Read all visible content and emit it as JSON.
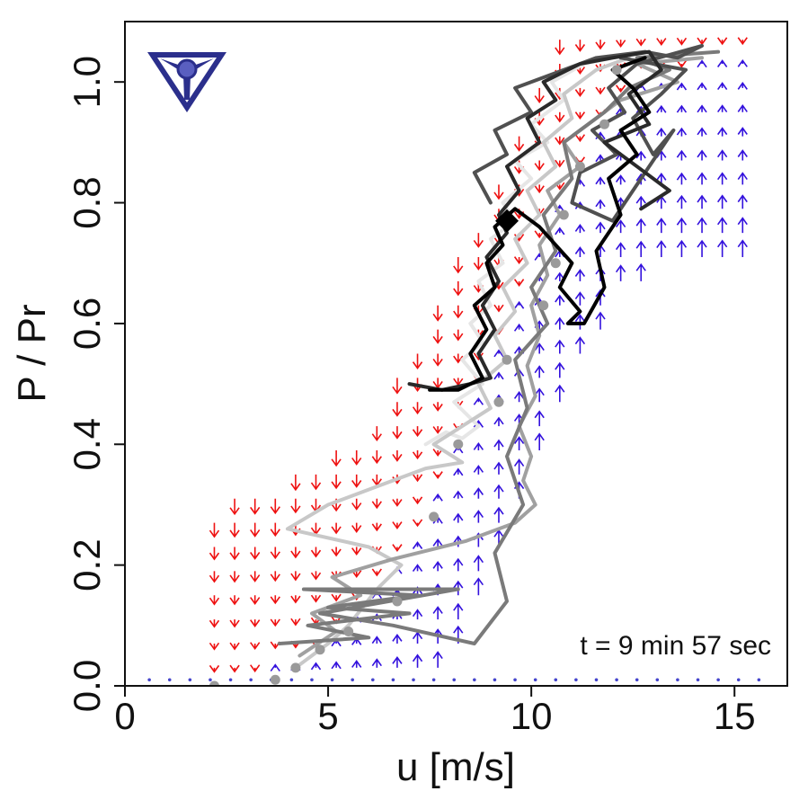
{
  "chart_data": {
    "type": "line",
    "title": "",
    "xlabel": "u [m/s]",
    "ylabel": "P / Pr",
    "xlim": [
      0,
      16.3
    ],
    "ylim": [
      0,
      1.1
    ],
    "x_ticks": [
      0,
      5,
      10,
      15
    ],
    "x_tick_labels": [
      "0",
      "5",
      "10",
      "15"
    ],
    "y_ticks": [
      0,
      0.2,
      0.4,
      0.6,
      0.8,
      1.0
    ],
    "y_tick_labels": [
      "0.0",
      "0.2",
      "0.4",
      "0.6",
      "0.8",
      "1.0"
    ],
    "annotation": "t = 9 min 57 sec",
    "grid": false,
    "logo": "tri-blade-turbine-logo",
    "colors": {
      "arrow_down": "#ee1111",
      "arrow_up": "#3311dd",
      "dot_zero": "#4444cc",
      "logo": "#2b2f8c"
    },
    "power_curve": {
      "u": [
        2.0,
        3.0,
        4.0,
        5.0,
        6.0,
        7.0,
        8.0,
        8.8,
        9.6,
        10.4,
        11.2,
        12.0,
        12.5,
        13.0,
        14.0,
        15.0,
        16.0
      ],
      "p": [
        0.0,
        0.01,
        0.04,
        0.08,
        0.14,
        0.24,
        0.38,
        0.5,
        0.62,
        0.75,
        0.87,
        0.96,
        1.0,
        1.02,
        1.03,
        1.04,
        1.04
      ]
    },
    "arrow_field": {
      "u_min": 2.2,
      "u_max": 15.2,
      "u_step": 0.5,
      "p_min": 0.03,
      "p_max": 1.08,
      "p_step": 0.04,
      "band_below": 4.5,
      "band_above": 4.0
    },
    "series": [
      {
        "color": "#e6e6e6",
        "width": 4,
        "points": [
          [
            7.4,
            0.4
          ],
          [
            7.9,
            0.42
          ],
          [
            8.3,
            0.41
          ],
          [
            8.7,
            0.43
          ],
          [
            8.1,
            0.47
          ],
          [
            8.8,
            0.5
          ],
          [
            8.3,
            0.54
          ],
          [
            8.8,
            0.57
          ],
          [
            8.5,
            0.6
          ],
          [
            9.0,
            0.63
          ],
          [
            8.7,
            0.67
          ],
          [
            9.3,
            0.7
          ],
          [
            9.0,
            0.74
          ],
          [
            9.6,
            0.77
          ],
          [
            9.3,
            0.8
          ],
          [
            10.0,
            0.84
          ],
          [
            9.6,
            0.87
          ],
          [
            10.4,
            0.9
          ],
          [
            10.0,
            0.93
          ],
          [
            10.8,
            0.97
          ],
          [
            10.5,
            1.0
          ],
          [
            11.3,
            1.03
          ],
          [
            12.0,
            1.04
          ]
        ]
      },
      {
        "color": "#c8c8c8",
        "width": 4,
        "points": [
          [
            4.2,
            0.03
          ],
          [
            5.0,
            0.07
          ],
          [
            5.5,
            0.1
          ],
          [
            6.2,
            0.16
          ],
          [
            6.8,
            0.2
          ],
          [
            6.0,
            0.23
          ],
          [
            4.0,
            0.26
          ],
          [
            5.0,
            0.3
          ],
          [
            6.2,
            0.33
          ],
          [
            7.4,
            0.36
          ],
          [
            8.3,
            0.37
          ],
          [
            7.6,
            0.4
          ],
          [
            8.3,
            0.43
          ],
          [
            9.0,
            0.46
          ],
          [
            8.7,
            0.5
          ],
          [
            9.4,
            0.54
          ],
          [
            9.1,
            0.58
          ],
          [
            9.6,
            0.62
          ],
          [
            9.3,
            0.66
          ],
          [
            9.9,
            0.7
          ],
          [
            9.6,
            0.74
          ],
          [
            10.2,
            0.78
          ],
          [
            9.9,
            0.82
          ],
          [
            10.6,
            0.86
          ],
          [
            10.3,
            0.9
          ],
          [
            11.0,
            0.94
          ],
          [
            10.8,
            0.98
          ],
          [
            11.6,
            1.02
          ],
          [
            12.4,
            1.04
          ]
        ]
      },
      {
        "color": "#a0a0a0",
        "width": 4,
        "points": [
          [
            4.3,
            0.05
          ],
          [
            5.2,
            0.09
          ],
          [
            4.6,
            0.12
          ],
          [
            5.8,
            0.15
          ],
          [
            5.1,
            0.18
          ],
          [
            6.6,
            0.21
          ],
          [
            8.4,
            0.24
          ],
          [
            9.6,
            0.27
          ],
          [
            10.1,
            0.3
          ],
          [
            9.8,
            0.34
          ],
          [
            10.0,
            0.38
          ],
          [
            9.7,
            0.43
          ],
          [
            10.1,
            0.48
          ],
          [
            9.9,
            0.53
          ],
          [
            10.2,
            0.58
          ],
          [
            10.0,
            0.63
          ],
          [
            10.4,
            0.68
          ],
          [
            10.2,
            0.73
          ],
          [
            10.7,
            0.78
          ],
          [
            10.4,
            0.82
          ],
          [
            11.2,
            0.86
          ],
          [
            10.8,
            0.9
          ],
          [
            11.6,
            0.94
          ],
          [
            12.2,
            0.97
          ],
          [
            13.6,
            1.0
          ],
          [
            12.6,
            1.03
          ],
          [
            14.2,
            1.04
          ]
        ]
      },
      {
        "color": "#7a7a7a",
        "width": 4,
        "points": [
          [
            3.8,
            0.07
          ],
          [
            6.0,
            0.08
          ],
          [
            4.5,
            0.1
          ],
          [
            7.0,
            0.12
          ],
          [
            5.0,
            0.13
          ],
          [
            7.2,
            0.15
          ],
          [
            4.4,
            0.16
          ],
          [
            8.2,
            0.16
          ],
          [
            6.5,
            0.14
          ],
          [
            4.8,
            0.12
          ],
          [
            6.6,
            0.1
          ],
          [
            8.6,
            0.07
          ],
          [
            9.4,
            0.14
          ],
          [
            9.1,
            0.22
          ],
          [
            9.8,
            0.3
          ],
          [
            9.4,
            0.38
          ],
          [
            9.9,
            0.46
          ],
          [
            9.6,
            0.54
          ],
          [
            10.4,
            0.6
          ],
          [
            10.0,
            0.66
          ],
          [
            10.6,
            0.72
          ],
          [
            10.3,
            0.78
          ],
          [
            11.0,
            0.84
          ],
          [
            10.8,
            0.9
          ],
          [
            11.8,
            0.95
          ],
          [
            12.4,
            0.99
          ],
          [
            13.4,
            1.02
          ],
          [
            12.6,
            1.04
          ],
          [
            14.6,
            1.05
          ]
        ]
      },
      {
        "color": "#505050",
        "width": 4,
        "points": [
          [
            9.0,
            0.8
          ],
          [
            8.6,
            0.85
          ],
          [
            9.4,
            0.88
          ],
          [
            9.1,
            0.92
          ],
          [
            10.0,
            0.95
          ],
          [
            9.6,
            0.99
          ],
          [
            10.8,
            1.02
          ],
          [
            11.6,
            1.04
          ],
          [
            12.8,
            1.05
          ],
          [
            13.6,
            1.04
          ],
          [
            14.2,
            1.06
          ],
          [
            12.6,
            1.03
          ],
          [
            11.9,
            0.99
          ],
          [
            12.3,
            0.95
          ],
          [
            11.5,
            0.92
          ],
          [
            12.1,
            0.88
          ],
          [
            11.2,
            0.85
          ],
          [
            11.0,
            0.8
          ],
          [
            12.0,
            0.77
          ],
          [
            13.5,
            0.92
          ],
          [
            13.0,
            0.88
          ],
          [
            12.5,
            0.94
          ],
          [
            13.2,
            0.98
          ],
          [
            13.8,
            1.02
          ],
          [
            12.2,
            1.04
          ]
        ]
      },
      {
        "color": "#2a2a2a",
        "width": 4,
        "points": [
          [
            7.0,
            0.5
          ],
          [
            7.8,
            0.49
          ],
          [
            8.5,
            0.5
          ],
          [
            9.0,
            0.51
          ],
          [
            8.7,
            0.55
          ],
          [
            9.1,
            0.59
          ],
          [
            8.8,
            0.63
          ],
          [
            9.2,
            0.67
          ],
          [
            8.9,
            0.71
          ],
          [
            9.4,
            0.75
          ],
          [
            9.2,
            0.78
          ],
          [
            9.7,
            0.82
          ],
          [
            9.4,
            0.86
          ],
          [
            10.2,
            0.9
          ],
          [
            9.9,
            0.94
          ],
          [
            10.6,
            0.97
          ],
          [
            10.3,
            1.0
          ],
          [
            11.2,
            1.03
          ],
          [
            12.0,
            1.04
          ],
          [
            12.9,
            1.05
          ],
          [
            13.2,
            1.02
          ],
          [
            12.4,
            0.98
          ],
          [
            12.9,
            0.93
          ],
          [
            11.8,
            0.9
          ],
          [
            12.6,
            0.86
          ],
          [
            13.4,
            0.82
          ],
          [
            12.7,
            0.79
          ]
        ]
      },
      {
        "color": "#000000",
        "width": 4,
        "points": [
          [
            7.5,
            0.49
          ],
          [
            8.2,
            0.49
          ],
          [
            8.8,
            0.51
          ],
          [
            8.5,
            0.55
          ],
          [
            8.9,
            0.59
          ],
          [
            8.6,
            0.63
          ],
          [
            9.1,
            0.66
          ],
          [
            8.9,
            0.7
          ],
          [
            9.3,
            0.73
          ],
          [
            9.1,
            0.76
          ],
          [
            9.6,
            0.79
          ],
          [
            10.2,
            0.76
          ],
          [
            10.6,
            0.73
          ],
          [
            11.0,
            0.7
          ],
          [
            10.7,
            0.66
          ],
          [
            11.2,
            0.62
          ],
          [
            10.9,
            0.6
          ],
          [
            11.3,
            0.6
          ],
          [
            11.8,
            0.66
          ],
          [
            11.6,
            0.72
          ],
          [
            12.2,
            0.78
          ],
          [
            11.9,
            0.84
          ],
          [
            12.6,
            0.88
          ],
          [
            12.2,
            0.92
          ],
          [
            12.9,
            0.95
          ],
          [
            12.5,
            0.99
          ],
          [
            12.0,
            1.02
          ],
          [
            12.8,
            1.04
          ]
        ]
      }
    ],
    "gray_points": [
      [
        2.2,
        0.0
      ],
      [
        3.7,
        0.01
      ],
      [
        4.2,
        0.03
      ],
      [
        4.8,
        0.06
      ],
      [
        5.5,
        0.09
      ],
      [
        6.7,
        0.14
      ],
      [
        7.6,
        0.28
      ],
      [
        8.2,
        0.4
      ],
      [
        9.2,
        0.47
      ],
      [
        9.4,
        0.54
      ],
      [
        10.3,
        0.63
      ],
      [
        10.6,
        0.7
      ],
      [
        10.8,
        0.78
      ],
      [
        11.2,
        0.86
      ],
      [
        11.8,
        0.93
      ],
      [
        12.1,
        1.02
      ]
    ],
    "current_point": [
      9.4,
      0.77
    ],
    "dotted_baseline": {
      "p": 0.01,
      "u_min": 0.6,
      "u_max": 16.0
    }
  }
}
